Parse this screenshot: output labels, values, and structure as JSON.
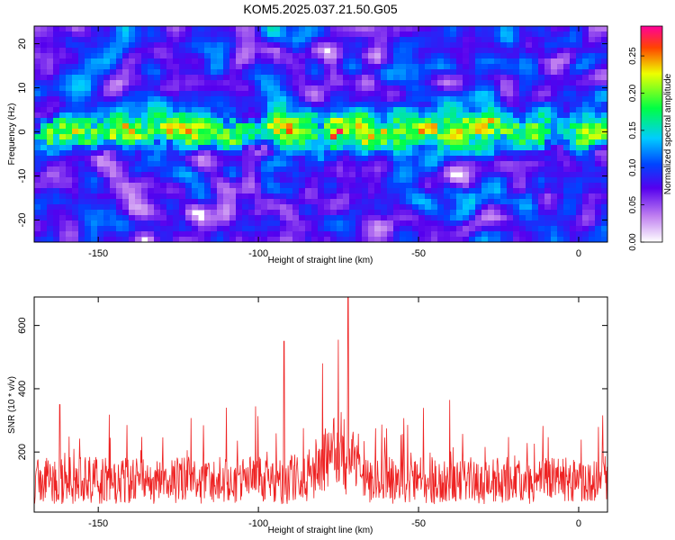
{
  "figure": {
    "title": "KOM5.2025.037.21.50.G05"
  },
  "chart_data": [
    {
      "type": "heatmap",
      "title": "KOM5.2025.037.21.50.G05",
      "xlabel": "Height of straight line (km)",
      "ylabel": "Frequency (Hz)",
      "xlim": [
        -170,
        9
      ],
      "ylim": [
        -25,
        24
      ],
      "xticks": [
        -150,
        -100,
        -50,
        0
      ],
      "yticks": [
        -20,
        -10,
        0,
        10,
        20
      ],
      "colorbar": {
        "label": "Normalized spectral amplitude",
        "range": [
          0,
          0.29
        ],
        "ticks": [
          0.0,
          0.05,
          0.1,
          0.15,
          0.2,
          0.25
        ],
        "tick_labels": [
          "0.00",
          "0.05",
          "0.10",
          "0.15",
          "0.20",
          "0.25"
        ]
      },
      "band": {
        "center_freq_hz": 0,
        "half_width_hz": 4,
        "peak_amplitude": 0.28,
        "peak_heights_km": [
          -75,
          -28
        ]
      }
    },
    {
      "type": "line",
      "xlabel": "Height of straight line (km)",
      "ylabel": "SNR (10 * v/v)",
      "xlim": [
        -170,
        9
      ],
      "ylim": [
        10,
        690
      ],
      "xticks": [
        -150,
        -100,
        -50,
        0
      ],
      "yticks": [
        200,
        400,
        600
      ],
      "color": "#ee2222",
      "baseline": 110,
      "peaks": [
        {
          "x": -72,
          "y": 690
        },
        {
          "x": -75,
          "y": 555
        },
        {
          "x": -92,
          "y": 550
        },
        {
          "x": -80,
          "y": 480
        },
        {
          "x": -162,
          "y": 350
        },
        {
          "x": -110,
          "y": 340
        }
      ]
    }
  ]
}
